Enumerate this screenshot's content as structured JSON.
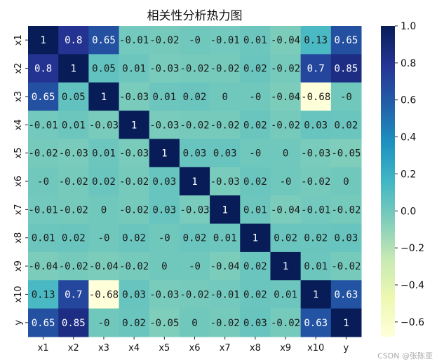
{
  "chart_data": {
    "type": "heatmap",
    "title": "相关性分析热力图",
    "xlabel": "",
    "ylabel": "",
    "rows": [
      "x1",
      "x2",
      "x3",
      "x4",
      "x5",
      "x6",
      "x7",
      "x8",
      "x9",
      "x10",
      "y"
    ],
    "cols": [
      "x1",
      "x2",
      "x3",
      "x4",
      "x5",
      "x6",
      "x7",
      "x8",
      "x9",
      "x10",
      "y"
    ],
    "values": [
      [
        1,
        0.8,
        0.65,
        -0.01,
        -0.02,
        0,
        -0.01,
        0.01,
        -0.04,
        0.13,
        0.65
      ],
      [
        0.8,
        1,
        0.05,
        0.01,
        -0.03,
        -0.02,
        -0.02,
        0.02,
        -0.02,
        0.7,
        0.85
      ],
      [
        0.65,
        0.05,
        1,
        -0.03,
        0.01,
        0.02,
        0,
        0,
        -0.04,
        -0.68,
        0
      ],
      [
        -0.01,
        0.01,
        -0.03,
        1,
        -0.03,
        -0.02,
        -0.02,
        0.02,
        -0.02,
        0.03,
        0.02
      ],
      [
        -0.02,
        -0.03,
        0.01,
        -0.03,
        1,
        0.03,
        0.03,
        0,
        0,
        -0.03,
        -0.05
      ],
      [
        0,
        -0.02,
        0.02,
        -0.02,
        0.03,
        1,
        -0.03,
        0.02,
        0,
        -0.02,
        0
      ],
      [
        -0.01,
        -0.02,
        0,
        -0.02,
        0.03,
        -0.03,
        1,
        0.01,
        -0.04,
        -0.01,
        -0.02
      ],
      [
        0.01,
        0.02,
        0,
        0.02,
        0,
        0.02,
        0.01,
        1,
        0.02,
        0.02,
        0.03
      ],
      [
        -0.04,
        -0.02,
        -0.04,
        -0.02,
        0,
        0,
        -0.04,
        0.02,
        1,
        0.01,
        -0.02
      ],
      [
        0.13,
        0.7,
        -0.68,
        0.03,
        -0.03,
        -0.02,
        -0.01,
        0.02,
        0.01,
        1,
        0.63
      ],
      [
        0.65,
        0.85,
        0,
        0.02,
        -0.05,
        0,
        -0.02,
        0.03,
        -0.02,
        0.63,
        1
      ]
    ],
    "value_labels": [
      [
        "1",
        "0.8",
        "0.65",
        "-0.01",
        "-0.02",
        "-0",
        "-0.01",
        "0.01",
        "-0.04",
        "0.13",
        "0.65"
      ],
      [
        "0.8",
        "1",
        "0.05",
        "0.01",
        "-0.03",
        "-0.02",
        "-0.02",
        "0.02",
        "-0.02",
        "0.7",
        "0.85"
      ],
      [
        "0.65",
        "0.05",
        "1",
        "-0.03",
        "0.01",
        "0.02",
        "0",
        "-0",
        "-0.04",
        "-0.68",
        "-0"
      ],
      [
        "-0.01",
        "0.01",
        "-0.03",
        "1",
        "-0.03",
        "-0.02",
        "-0.02",
        "0.02",
        "-0.02",
        "0.03",
        "0.02"
      ],
      [
        "-0.02",
        "-0.03",
        "0.01",
        "-0.03",
        "1",
        "0.03",
        "0.03",
        "-0",
        "0",
        "-0.03",
        "-0.05"
      ],
      [
        "-0",
        "-0.02",
        "0.02",
        "-0.02",
        "0.03",
        "1",
        "-0.03",
        "0.02",
        "-0",
        "-0.02",
        "0"
      ],
      [
        "-0.01",
        "-0.02",
        "0",
        "-0.02",
        "0.03",
        "-0.03",
        "1",
        "0.01",
        "-0.04",
        "-0.01",
        "-0.02"
      ],
      [
        "0.01",
        "0.02",
        "-0",
        "0.02",
        "-0",
        "0.02",
        "0.01",
        "1",
        "0.02",
        "0.02",
        "0.03"
      ],
      [
        "-0.04",
        "-0.02",
        "-0.04",
        "-0.02",
        "0",
        "-0",
        "-0.04",
        "0.02",
        "1",
        "0.01",
        "-0.02"
      ],
      [
        "0.13",
        "0.7",
        "-0.68",
        "0.03",
        "-0.03",
        "-0.02",
        "-0.01",
        "0.02",
        "0.01",
        "1",
        "0.63"
      ],
      [
        "0.65",
        "0.85",
        "-0",
        "0.02",
        "-0.05",
        "0",
        "-0.02",
        "0.03",
        "-0.02",
        "0.63",
        "1"
      ]
    ],
    "colorbar": {
      "range": [
        -0.68,
        1.0
      ],
      "ticks": [
        1.0,
        0.8,
        0.6,
        0.4,
        0.2,
        0.0,
        -0.2,
        -0.4,
        -0.6
      ],
      "tick_labels": [
        "1.0",
        "0.8",
        "0.6",
        "0.4",
        "0.2",
        "0.0",
        "−0.2",
        "−0.4",
        "−0.6"
      ]
    },
    "colormap": "YlGnBu",
    "colormap_stops": [
      "#ffffd9",
      "#edf8b1",
      "#c7e9b4",
      "#7fcdbb",
      "#41b6c4",
      "#1d91c0",
      "#225ea8",
      "#253494",
      "#081d58"
    ],
    "annotation_colors": {
      "dark": "#1a1a1a",
      "light": "#ffffff"
    }
  },
  "watermark": "CSDN @张陈亚"
}
